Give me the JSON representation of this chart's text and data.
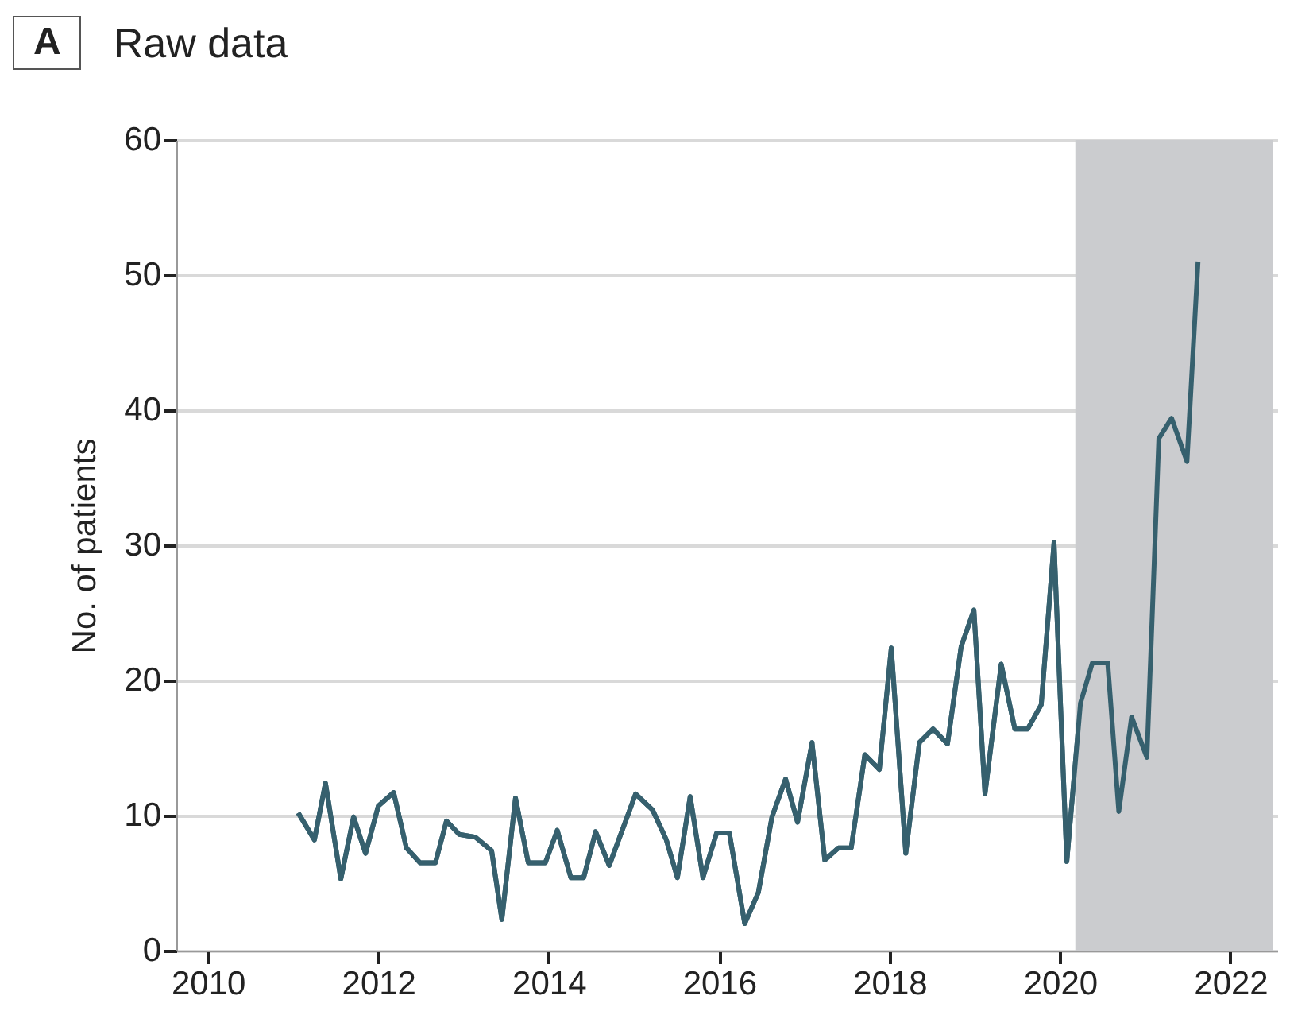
{
  "chart_data": {
    "type": "line",
    "title": "Raw data",
    "annotations": [
      "A"
    ],
    "ylabel": "No. of patients",
    "x": [
      2011.06,
      2011.25,
      2011.38,
      2011.56,
      2011.71,
      2011.85,
      2012.0,
      2012.18,
      2012.33,
      2012.49,
      2012.67,
      2012.8,
      2012.95,
      2013.14,
      2013.33,
      2013.45,
      2013.61,
      2013.76,
      2013.96,
      2014.1,
      2014.26,
      2014.41,
      2014.55,
      2014.71,
      2015.02,
      2015.22,
      2015.38,
      2015.51,
      2015.66,
      2015.81,
      2015.97,
      2016.12,
      2016.3,
      2016.46,
      2016.62,
      2016.78,
      2016.92,
      2017.09,
      2017.24,
      2017.4,
      2017.55,
      2017.71,
      2017.88,
      2018.02,
      2018.19,
      2018.35,
      2018.51,
      2018.68,
      2018.84,
      2018.99,
      2019.12,
      2019.31,
      2019.47,
      2019.62,
      2019.78,
      2019.93,
      2020.08,
      2020.24,
      2020.38,
      2020.56,
      2020.69,
      2020.84,
      2021.02,
      2021.16,
      2021.31,
      2021.49,
      2021.62
    ],
    "series": [
      {
        "color": "#36606e",
        "values": [
          10.2,
          8.2,
          12.4,
          5.3,
          9.9,
          7.2,
          10.7,
          11.7,
          7.6,
          6.5,
          6.5,
          9.6,
          8.6,
          8.4,
          7.4,
          2.3,
          11.3,
          6.5,
          6.5,
          8.9,
          5.4,
          5.4,
          8.8,
          6.3,
          11.6,
          10.4,
          8.2,
          5.4,
          11.4,
          5.4,
          8.7,
          8.7,
          2.0,
          4.3,
          9.9,
          12.7,
          9.5,
          15.4,
          6.7,
          7.6,
          7.6,
          14.5,
          13.4,
          22.4,
          7.2,
          15.4,
          16.4,
          15.3,
          22.5,
          25.2,
          11.6,
          21.2,
          16.4,
          16.4,
          18.2,
          30.2,
          6.6,
          18.3,
          21.3,
          21.3,
          10.3,
          17.3,
          14.3,
          37.9,
          39.4,
          36.2,
          51.0
        ]
      }
    ],
    "xlim": [
      2009.63,
      2022.55
    ],
    "xticks": [
      2010,
      2012,
      2014,
      2016,
      2018,
      2020,
      2022
    ],
    "ylim": [
      0,
      60
    ],
    "yticks": [
      0,
      10,
      20,
      30,
      40,
      50,
      60
    ],
    "bands": [
      {
        "axis": "x",
        "from": 2020.18,
        "to": 2022.5,
        "color": "#cbcccf"
      }
    ],
    "grid": "y",
    "marker": "none",
    "line_style": "solid"
  }
}
